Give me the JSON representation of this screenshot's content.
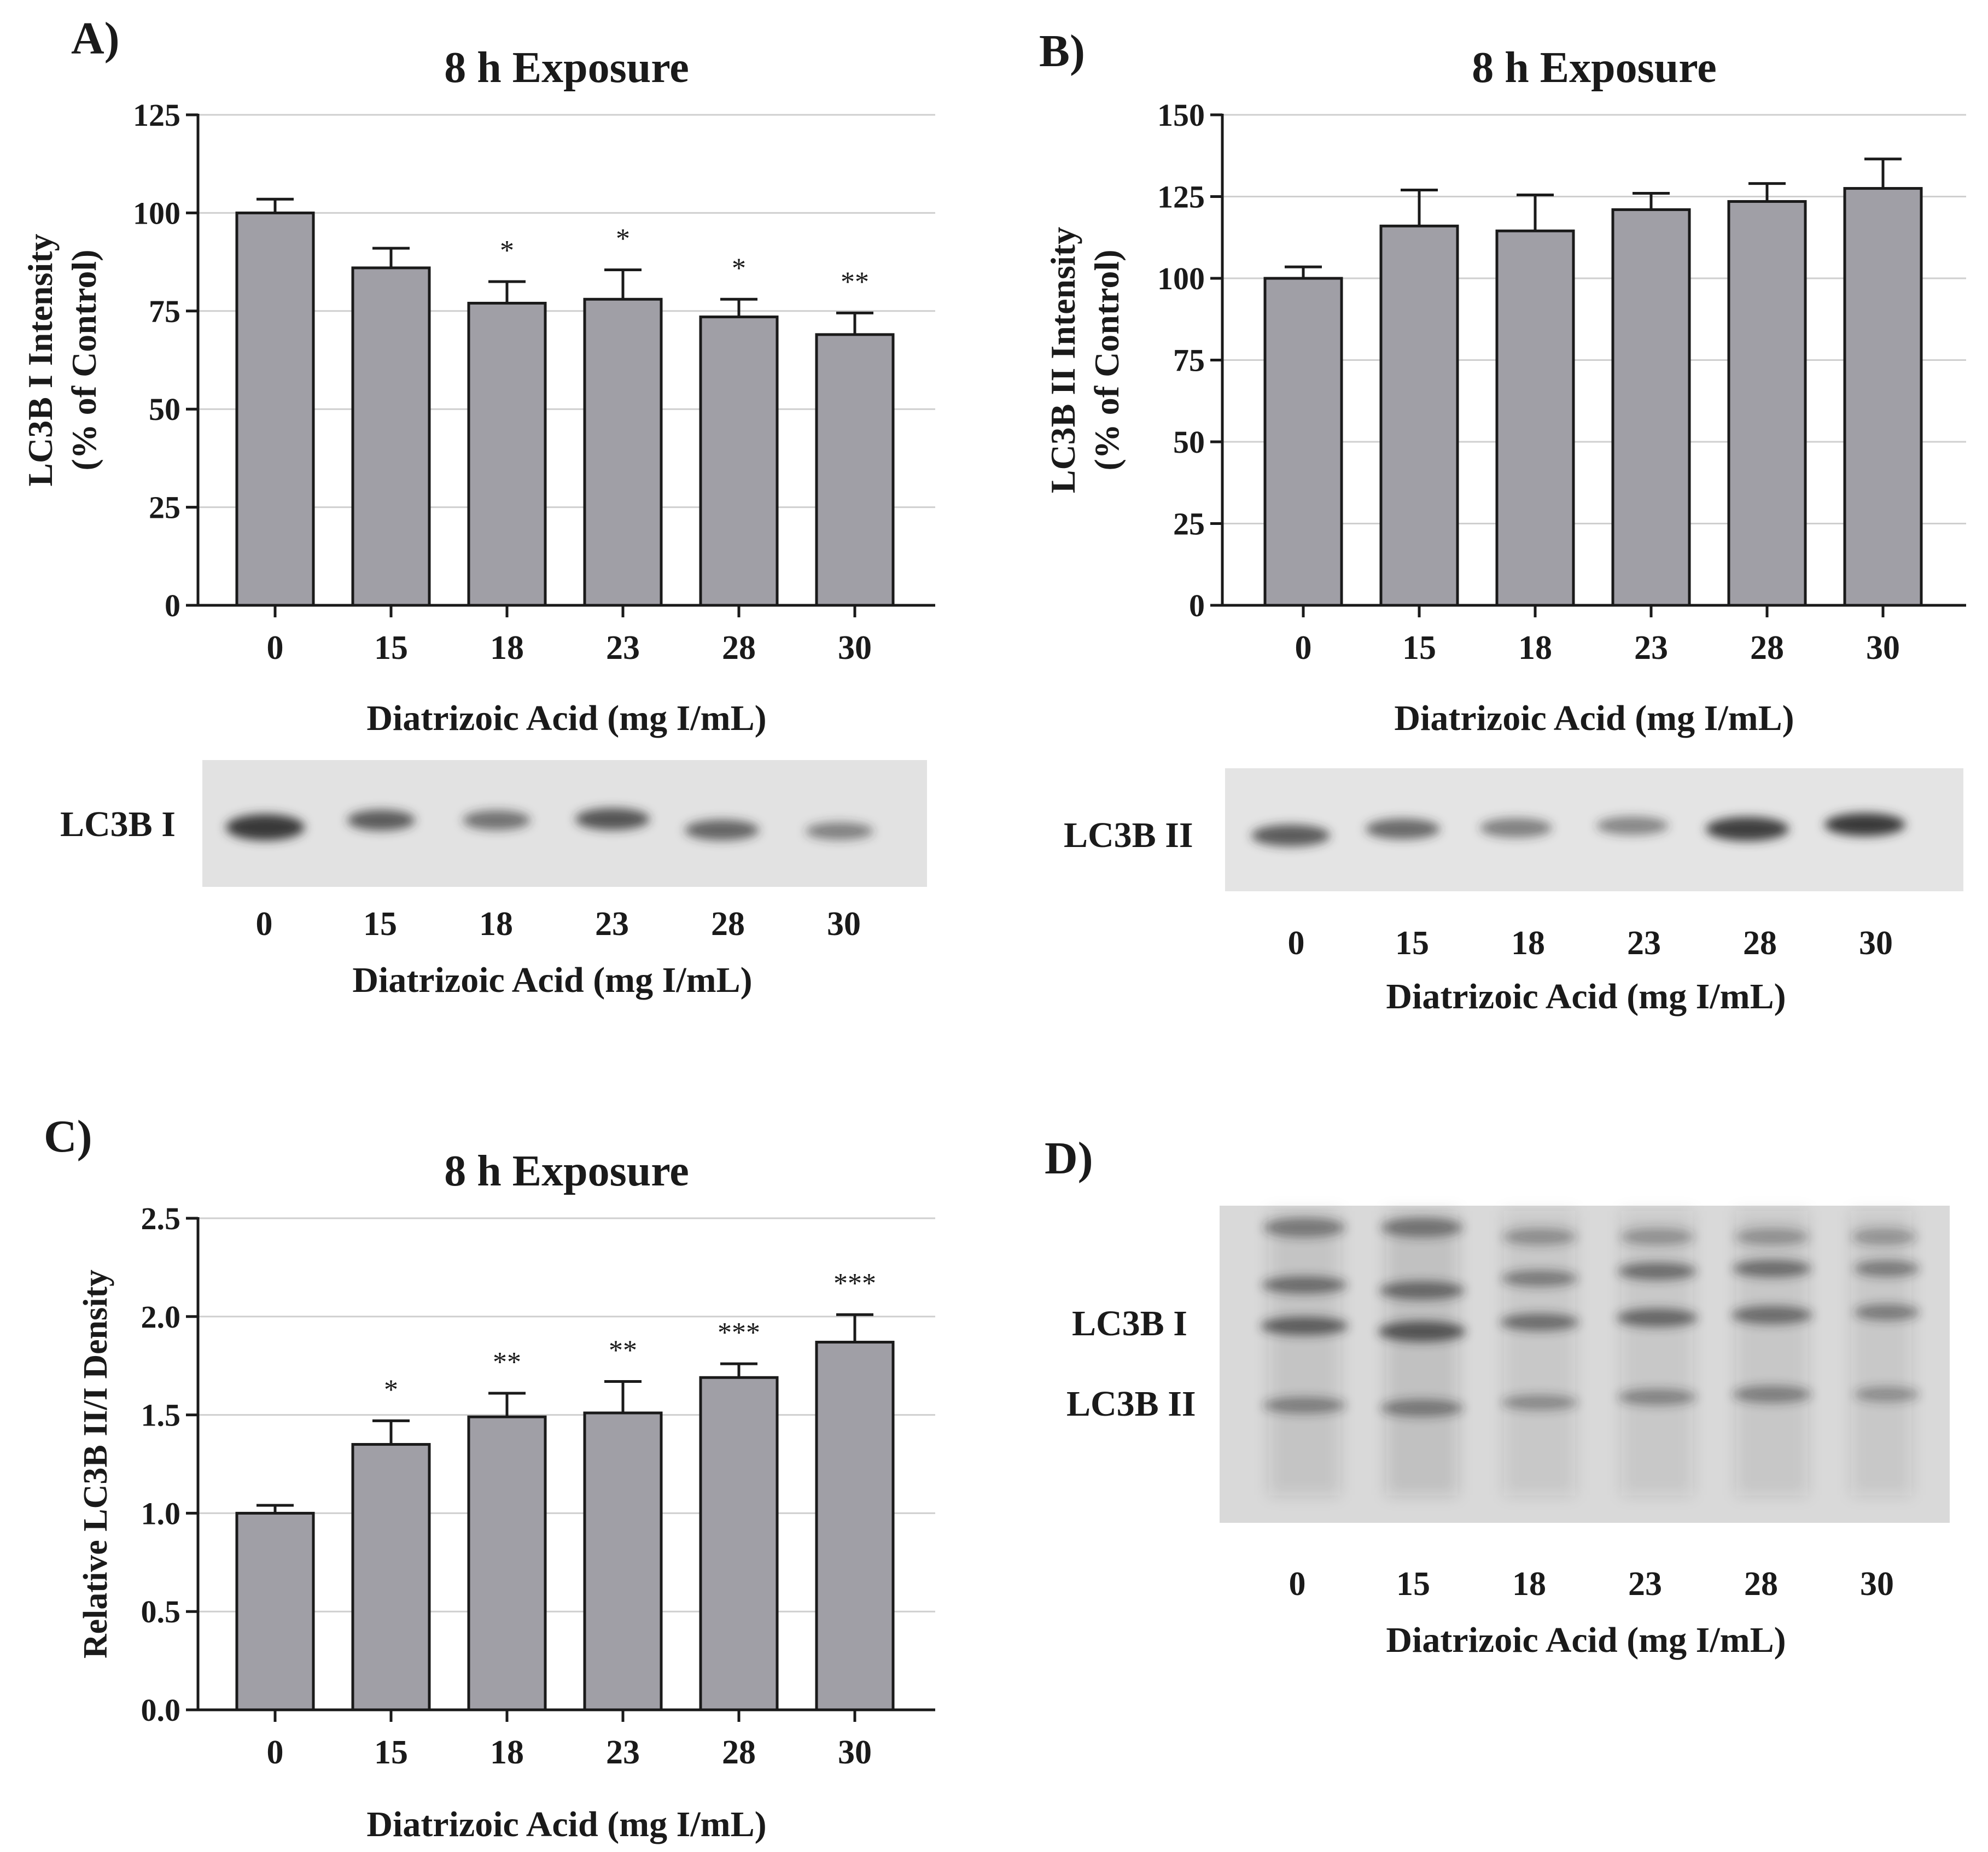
{
  "panels": {
    "a": {
      "letter": "A)"
    },
    "b": {
      "letter": "B)"
    },
    "c": {
      "letter": "C)"
    },
    "d": {
      "letter": "D)"
    }
  },
  "colors": {
    "bar_fill": "#a09fa6",
    "bar_stroke": "#1a1a1a",
    "grid": "#cfcfcf",
    "text": "#1a1a1a"
  },
  "chart_data": [
    {
      "type": "bar",
      "panel": "A",
      "title": "8 h Exposure",
      "xlabel": "Diatrizoic Acid (mg I/mL)",
      "ylabel_lines": [
        "LC3B I Intensity",
        "(% of Control)"
      ],
      "categories": [
        "0",
        "15",
        "18",
        "23",
        "28",
        "30"
      ],
      "values": [
        100,
        86,
        77,
        78,
        73.5,
        69
      ],
      "errors": [
        3.5,
        5,
        5.5,
        7.5,
        4.5,
        5.5
      ],
      "significance": [
        "",
        "",
        "*",
        "*",
        "*",
        "**"
      ],
      "ylim": [
        0,
        125
      ],
      "yticks": [
        "0",
        "25",
        "50",
        "75",
        "100",
        "125"
      ],
      "grid": true
    },
    {
      "type": "bar",
      "panel": "B",
      "title": "8 h Exposure",
      "xlabel": "Diatrizoic Acid (mg I/mL)",
      "ylabel_lines": [
        "LC3B II Intensity",
        "(% of Control)"
      ],
      "categories": [
        "0",
        "15",
        "18",
        "23",
        "28",
        "30"
      ],
      "values": [
        100,
        116,
        114.5,
        121,
        123.5,
        127.5
      ],
      "errors": [
        3.5,
        11,
        11,
        5,
        5.5,
        9
      ],
      "significance": [
        "",
        "",
        "",
        "",
        "",
        ""
      ],
      "ylim": [
        0,
        150
      ],
      "yticks": [
        "0",
        "25",
        "50",
        "75",
        "100",
        "125",
        "150"
      ],
      "grid": true
    },
    {
      "type": "bar",
      "panel": "C",
      "title": "8 h Exposure",
      "xlabel": "Diatrizoic Acid (mg I/mL)",
      "ylabel_lines": [
        "Relative LC3B II/I Density"
      ],
      "categories": [
        "0",
        "15",
        "18",
        "23",
        "28",
        "30"
      ],
      "values": [
        1.0,
        1.35,
        1.49,
        1.51,
        1.69,
        1.87
      ],
      "errors": [
        0.04,
        0.12,
        0.12,
        0.16,
        0.07,
        0.14
      ],
      "significance": [
        "",
        "*",
        "**",
        "**",
        "***",
        "***"
      ],
      "ylim": [
        0,
        2.5
      ],
      "yticks": [
        "0.0",
        "0.5",
        "1.0",
        "1.5",
        "2.0",
        "2.5"
      ],
      "grid": true
    }
  ],
  "blots": {
    "a": {
      "bands": [
        "LC3B I"
      ],
      "lanes": [
        "0",
        "15",
        "18",
        "23",
        "28",
        "30"
      ],
      "xlabel": "Diatrizoic Acid (mg I/mL)"
    },
    "b": {
      "bands": [
        "LC3B II"
      ],
      "lanes": [
        "0",
        "15",
        "18",
        "23",
        "28",
        "30"
      ],
      "xlabel": "Diatrizoic Acid (mg I/mL)"
    },
    "d": {
      "bands": [
        "LC3B I",
        "LC3B II"
      ],
      "lanes": [
        "0",
        "15",
        "18",
        "23",
        "28",
        "30"
      ],
      "xlabel": "Diatrizoic Acid (mg I/mL)"
    }
  }
}
